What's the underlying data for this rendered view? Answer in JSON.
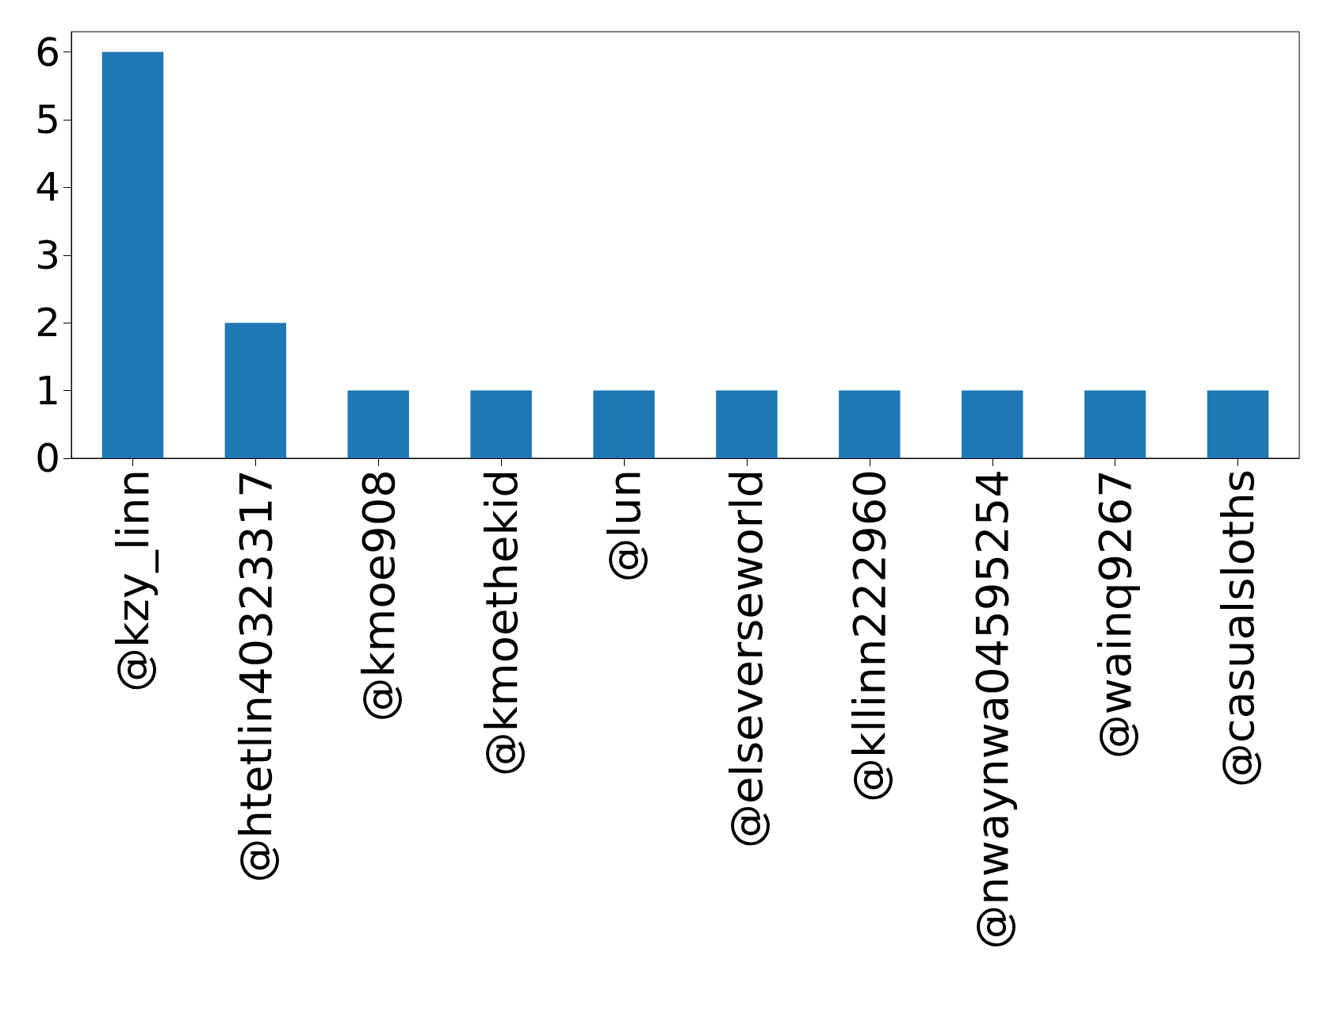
{
  "chart_data": {
    "type": "bar",
    "categories": [
      "@kzy_linn",
      "@htetlin40323317",
      "@kmoe908",
      "@kmoethekid",
      "@lun",
      "@elseverseworld",
      "@kllinn222960",
      "@nwaynwa04595254",
      "@wainq9267",
      "@casualsloths"
    ],
    "values": [
      6,
      2,
      1,
      1,
      1,
      1,
      1,
      1,
      1,
      1
    ],
    "color": "#1f77b4",
    "ylim": [
      0,
      6.3
    ],
    "yticks": [
      0,
      1,
      2,
      3,
      4,
      5,
      6
    ],
    "grid": false
  }
}
